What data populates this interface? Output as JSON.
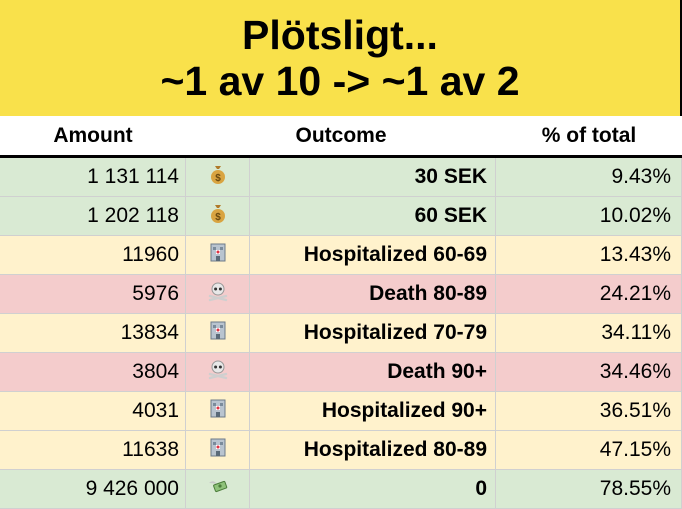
{
  "title": {
    "line1": "Plötsligt...",
    "line2": "~1 av 10 -> ~1 av 2",
    "bg": "#f9e14b"
  },
  "headers": {
    "amount": "Amount",
    "outcome": "Outcome",
    "pct": "% of total"
  },
  "colors": {
    "green": "#d9ead3",
    "yellow": "#fff2cc",
    "red": "#f4cccc"
  },
  "rows": [
    {
      "amount": "1 131 114",
      "icon": "money-bag-icon",
      "outcome": "30 SEK",
      "pct": "9.43%",
      "color": "green"
    },
    {
      "amount": "1 202 118",
      "icon": "money-bag-icon",
      "outcome": "60 SEK",
      "pct": "10.02%",
      "color": "green"
    },
    {
      "amount": "11960",
      "icon": "hospital-icon",
      "outcome": "Hospitalized 60-69",
      "pct": "13.43%",
      "color": "yellow"
    },
    {
      "amount": "5976",
      "icon": "skull-crossbones-icon",
      "outcome": "Death 80-89",
      "pct": "24.21%",
      "color": "red"
    },
    {
      "amount": "13834",
      "icon": "hospital-icon",
      "outcome": "Hospitalized 70-79",
      "pct": "34.11%",
      "color": "yellow"
    },
    {
      "amount": "3804",
      "icon": "skull-crossbones-icon",
      "outcome": "Death 90+",
      "pct": "34.46%",
      "color": "red"
    },
    {
      "amount": "4031",
      "icon": "hospital-icon",
      "outcome": "Hospitalized 90+",
      "pct": "36.51%",
      "color": "yellow"
    },
    {
      "amount": "11638",
      "icon": "hospital-icon",
      "outcome": "Hospitalized 80-89",
      "pct": "47.15%",
      "color": "yellow"
    },
    {
      "amount": "9 426 000",
      "icon": "money-with-wings-icon",
      "outcome": "0",
      "pct": "78.55%",
      "color": "green"
    }
  ]
}
